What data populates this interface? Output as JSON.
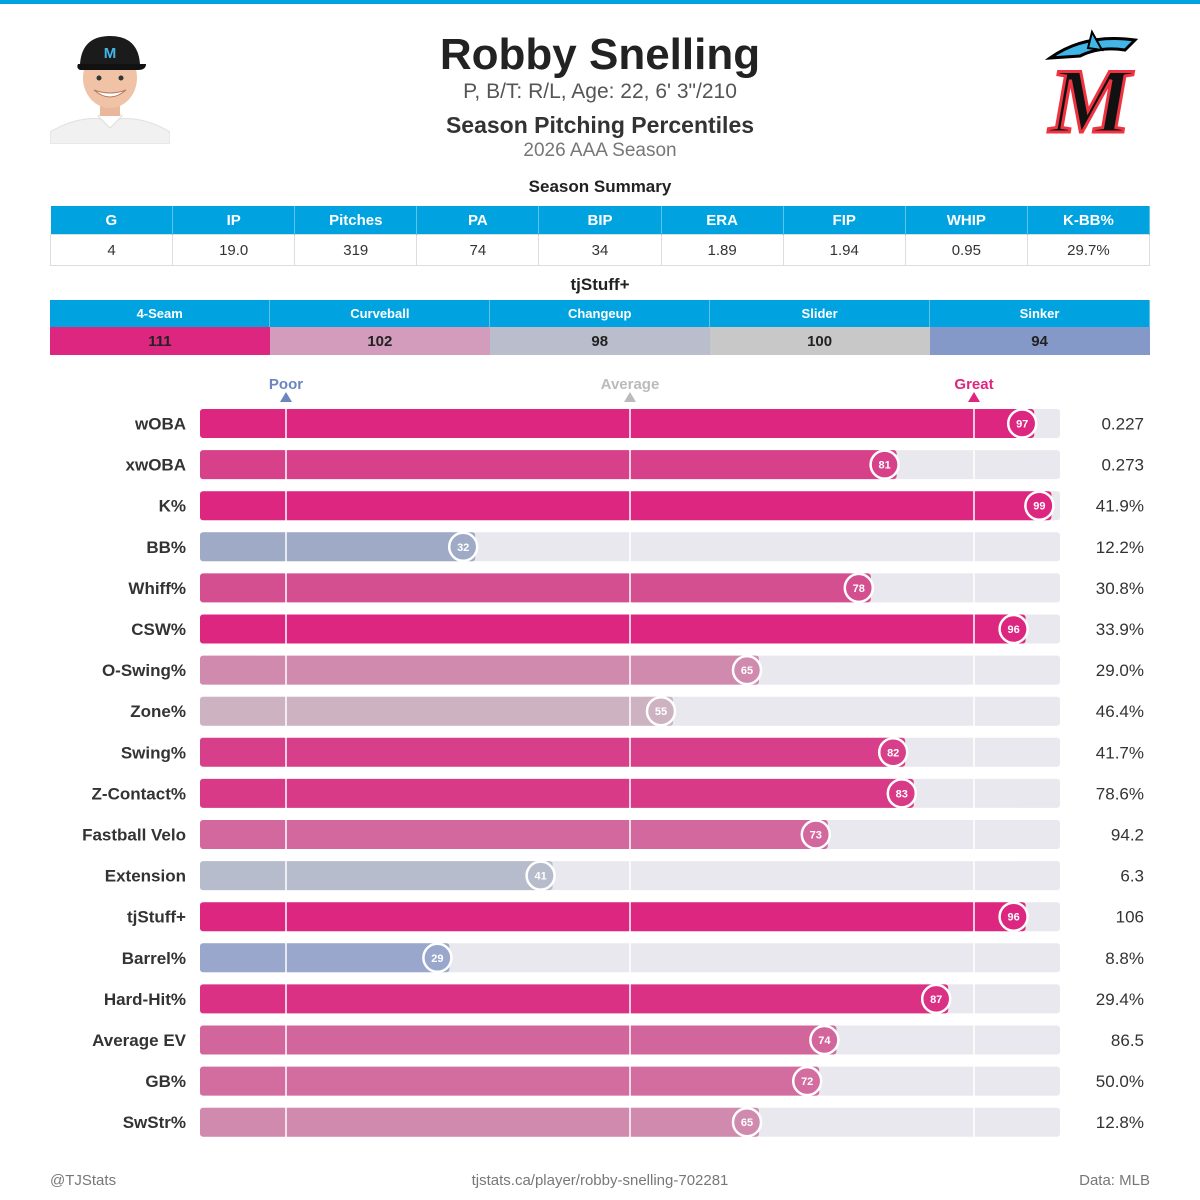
{
  "header": {
    "name": "Robby Snelling",
    "bio": "P, B/T: R/L, Age: 22, 6' 3\"/210",
    "chart_title": "Season Pitching Percentiles",
    "chart_subtitle": "2026 AAA Season",
    "logo_letter": "M"
  },
  "summary": {
    "label": "Season Summary",
    "headers": [
      "G",
      "IP",
      "Pitches",
      "PA",
      "BIP",
      "ERA",
      "FIP",
      "WHIP",
      "K-BB%"
    ],
    "values": [
      "4",
      "19.0",
      "319",
      "74",
      "34",
      "1.89",
      "1.94",
      "0.95",
      "29.7%"
    ]
  },
  "tjstuff": {
    "label": "tjStuff+",
    "pitches": [
      {
        "name": "4-Seam",
        "value": "111",
        "color": "#dc267f"
      },
      {
        "name": "Curveball",
        "value": "102",
        "color": "#d39cbc"
      },
      {
        "name": "Changeup",
        "value": "98",
        "color": "#b9bdcc"
      },
      {
        "name": "Slider",
        "value": "100",
        "color": "#c8c8c8"
      },
      {
        "name": "Sinker",
        "value": "94",
        "color": "#8599c8"
      }
    ]
  },
  "chart_data": {
    "type": "bar",
    "orientation": "horizontal",
    "xlim": [
      0,
      100
    ],
    "reference_lines": [
      {
        "label": "Poor",
        "value": 10,
        "color": "#6b85c1"
      },
      {
        "label": "Average",
        "value": 50,
        "color": "#bbbbbb"
      },
      {
        "label": "Great",
        "value": 90,
        "color": "#dc267f"
      }
    ],
    "metrics": [
      {
        "name": "wOBA",
        "percentile": 97,
        "value": "0.227",
        "color": "#dc267f"
      },
      {
        "name": "xwOBA",
        "percentile": 81,
        "value": "0.273",
        "color": "#d6418a"
      },
      {
        "name": "K%",
        "percentile": 99,
        "value": "41.9%",
        "color": "#dc267f"
      },
      {
        "name": "BB%",
        "percentile": 32,
        "value": "12.2%",
        "color": "#9eaac6"
      },
      {
        "name": "Whiff%",
        "percentile": 78,
        "value": "30.8%",
        "color": "#d44f8f"
      },
      {
        "name": "CSW%",
        "percentile": 96,
        "value": "33.9%",
        "color": "#dc267f"
      },
      {
        "name": "O-Swing%",
        "percentile": 65,
        "value": "29.0%",
        "color": "#d08aae"
      },
      {
        "name": "Zone%",
        "percentile": 55,
        "value": "46.4%",
        "color": "#cdb3c2"
      },
      {
        "name": "Swing%",
        "percentile": 82,
        "value": "41.7%",
        "color": "#d83f8a"
      },
      {
        "name": "Z-Contact%",
        "percentile": 83,
        "value": "78.6%",
        "color": "#d83a88"
      },
      {
        "name": "Fastball Velo",
        "percentile": 73,
        "value": "94.2",
        "color": "#d2689d"
      },
      {
        "name": "Extension",
        "percentile": 41,
        "value": "6.3",
        "color": "#b6bccb"
      },
      {
        "name": "tjStuff+",
        "percentile": 96,
        "value": "106",
        "color": "#dc267f"
      },
      {
        "name": "Barrel%",
        "percentile": 29,
        "value": "8.8%",
        "color": "#98a7cb"
      },
      {
        "name": "Hard-Hit%",
        "percentile": 87,
        "value": "29.4%",
        "color": "#da3185"
      },
      {
        "name": "Average EV",
        "percentile": 74,
        "value": "86.5",
        "color": "#d2659c"
      },
      {
        "name": "GB%",
        "percentile": 72,
        "value": "50.0%",
        "color": "#d36d9f"
      },
      {
        "name": "SwStr%",
        "percentile": 65,
        "value": "12.8%",
        "color": "#d08aae"
      }
    ]
  },
  "footer": {
    "left": "@TJStats",
    "center": "tjstats.ca/player/robby-snelling-702281",
    "right": "Data: MLB"
  }
}
